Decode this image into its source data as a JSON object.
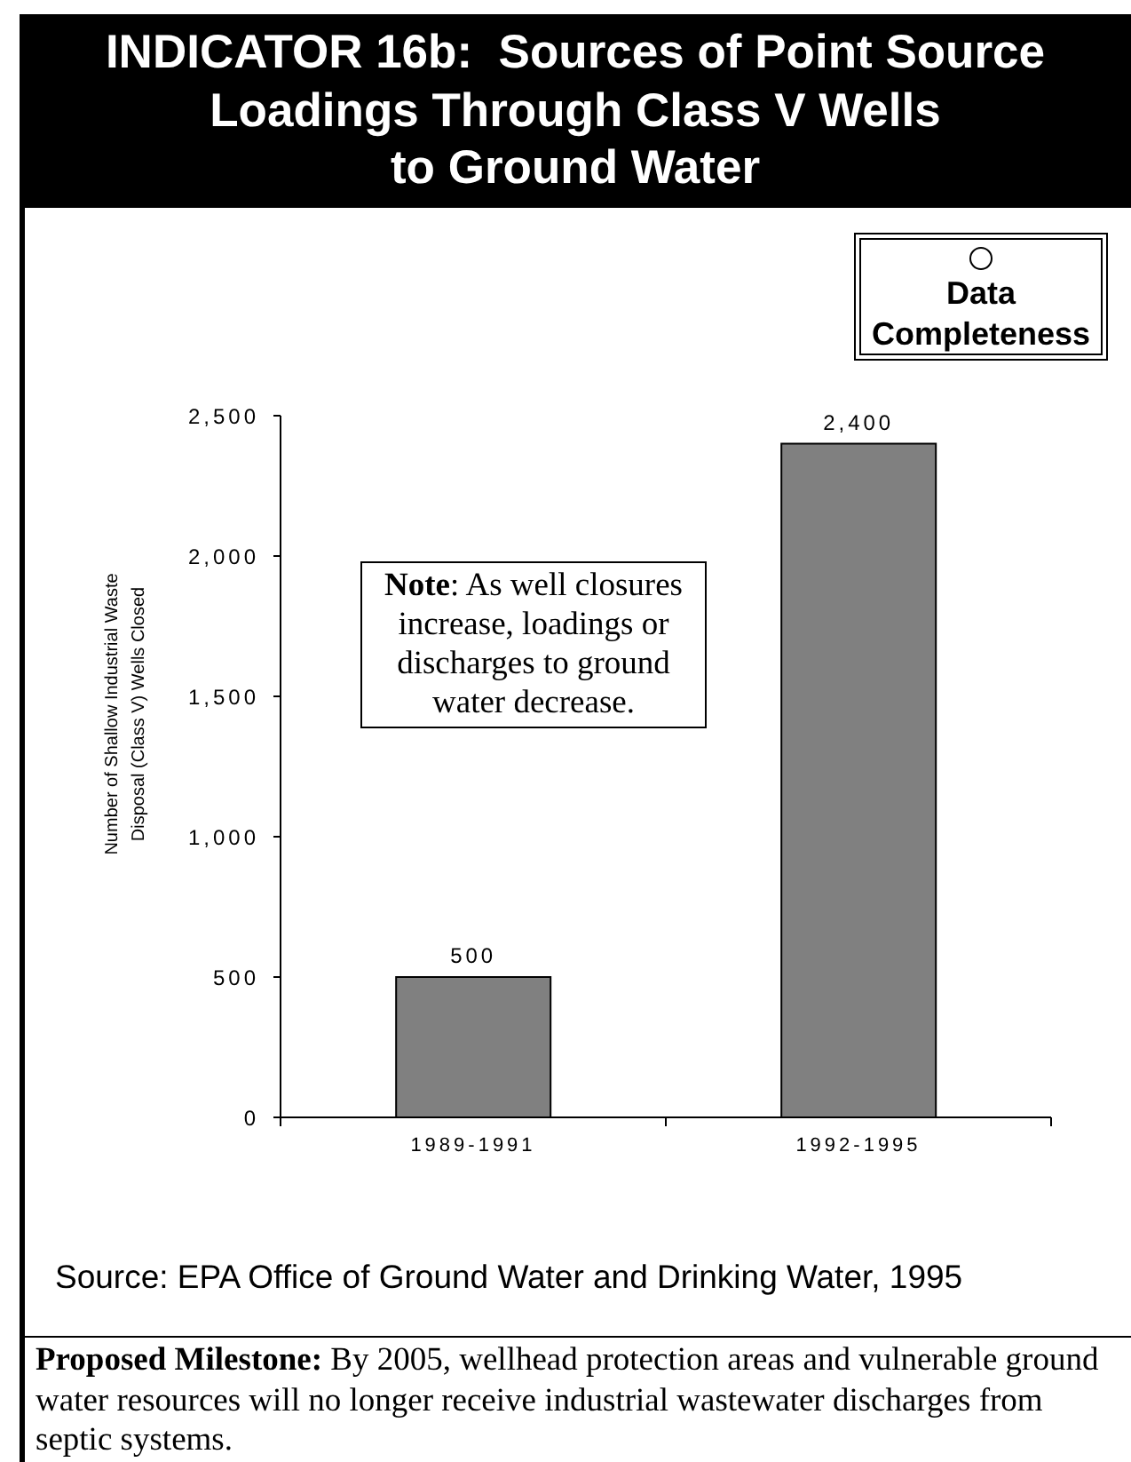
{
  "chart_data": {
    "type": "bar",
    "title": "INDICATOR 16b:  Sources of Point Source\nLoadings Through Class V Wells\nto Ground Water",
    "ylabel": "Number of Shallow Industrial Waste\nDisposal (Class V) Wells Closed",
    "categories": [
      "1989-1991",
      "1992-1995"
    ],
    "values": [
      500,
      2400
    ],
    "value_labels": [
      "500",
      "2,400"
    ],
    "color": "#808080",
    "ylim": [
      0,
      2500
    ],
    "yticks": [
      0,
      500,
      {
        "value": 1000,
        "label": "1,000"
      },
      {
        "value": 1500,
        "label": "1,500"
      },
      {
        "value": 2000,
        "label": "2,000"
      },
      {
        "value": 2500,
        "label": "2,500"
      }
    ],
    "annotations": [
      "Data Completeness",
      "Note: As well closures increase, loadings or discharges to ground water decrease.",
      "Source: EPA Office of Ground Water and Drinking Water, 1995",
      "Proposed Milestone: By 2005, wellhead protection areas and vulnerable ground water resources will no longer receive industrial wastewater discharges from septic systems."
    ]
  }
}
